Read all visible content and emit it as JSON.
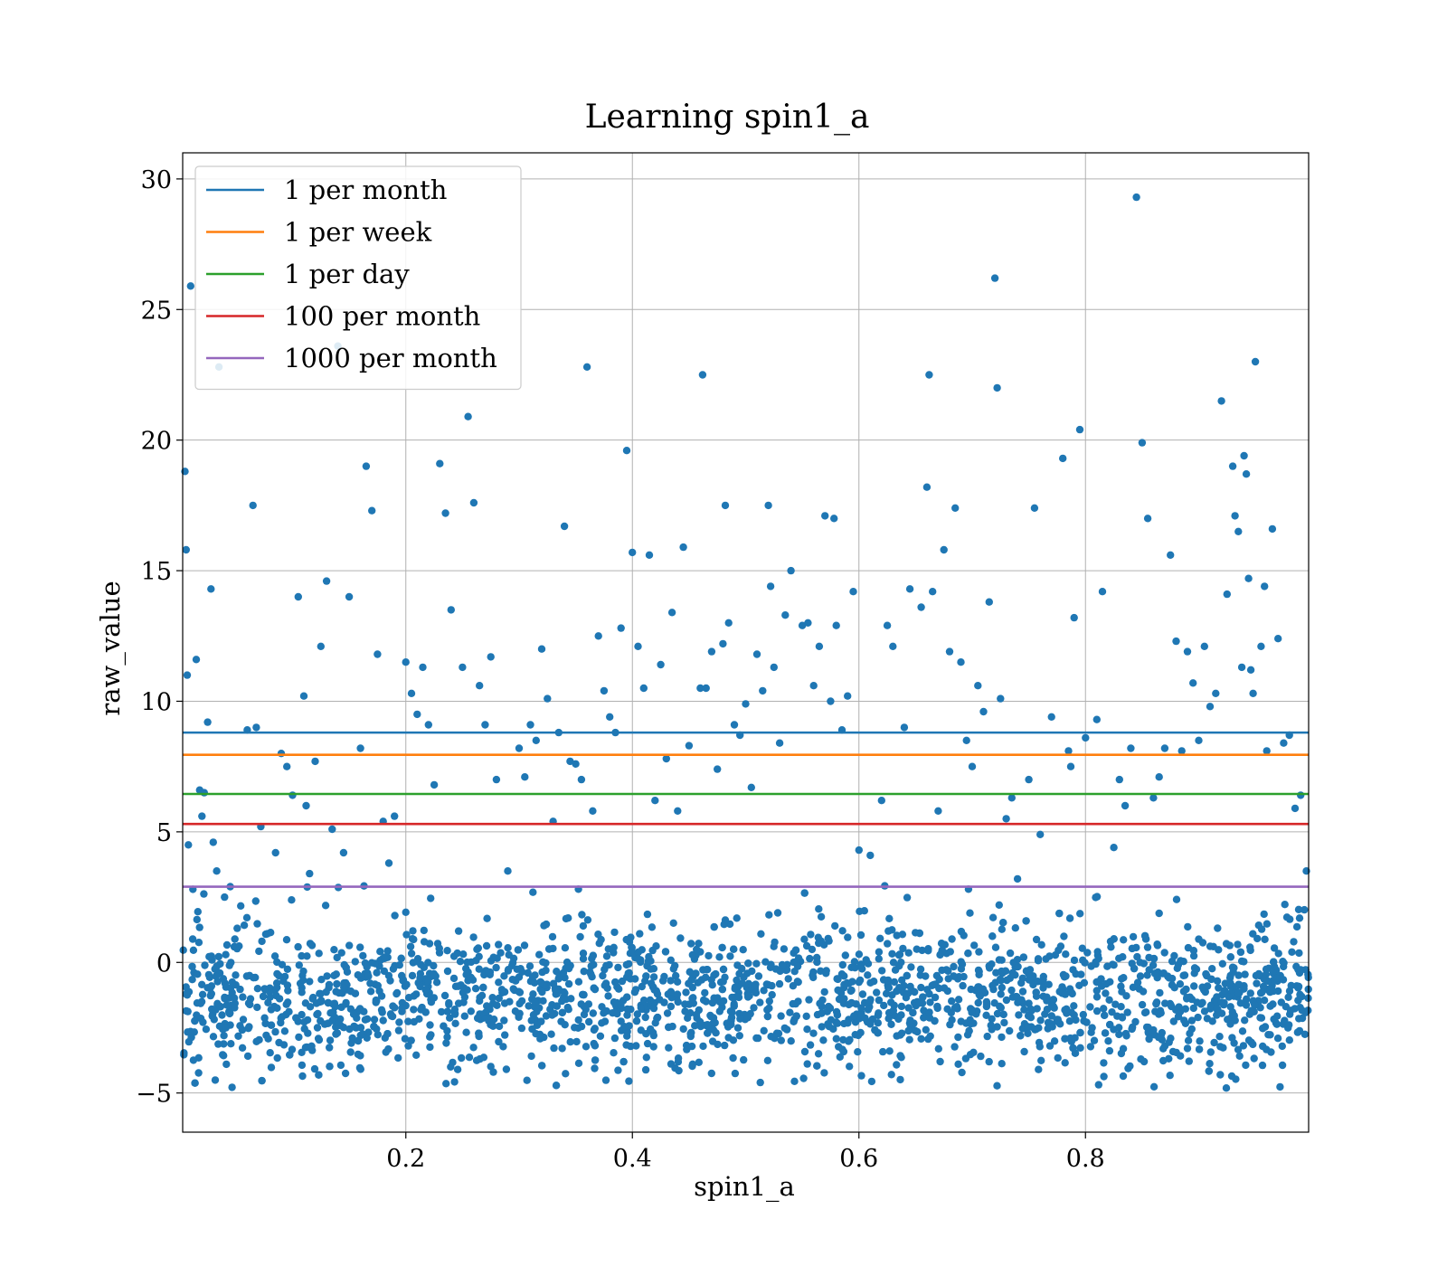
{
  "chart_data": {
    "type": "scatter",
    "title": "Learning spin1_a",
    "xlabel": "spin1_a",
    "ylabel": "raw_value",
    "xlim": [
      0.003,
      0.997
    ],
    "ylim": [
      -6.5,
      31.0
    ],
    "xticks": [
      0.2,
      0.4,
      0.6,
      0.8
    ],
    "xtick_labels": [
      "0.2",
      "0.4",
      "0.6",
      "0.8"
    ],
    "yticks": [
      -5,
      0,
      5,
      10,
      15,
      20,
      25,
      30
    ],
    "ytick_labels": [
      "−5",
      "0",
      "5",
      "10",
      "15",
      "20",
      "25",
      "30"
    ],
    "grid": true,
    "legend_position": "top-left",
    "scatter_color": "#1f77b4",
    "scatter_points": [
      [
        0.005,
        18.8
      ],
      [
        0.006,
        15.8
      ],
      [
        0.007,
        11.0
      ],
      [
        0.008,
        4.5
      ],
      [
        0.01,
        25.9
      ],
      [
        0.012,
        2.8
      ],
      [
        0.015,
        11.6
      ],
      [
        0.018,
        6.6
      ],
      [
        0.02,
        5.6
      ],
      [
        0.022,
        6.5
      ],
      [
        0.025,
        9.2
      ],
      [
        0.028,
        14.3
      ],
      [
        0.03,
        4.6
      ],
      [
        0.033,
        3.5
      ],
      [
        0.035,
        22.8
      ],
      [
        0.04,
        2.5
      ],
      [
        0.045,
        2.9
      ],
      [
        0.06,
        8.9
      ],
      [
        0.065,
        17.5
      ],
      [
        0.068,
        9.0
      ],
      [
        0.072,
        5.2
      ],
      [
        0.085,
        4.2
      ],
      [
        0.09,
        8.0
      ],
      [
        0.095,
        7.5
      ],
      [
        0.1,
        6.4
      ],
      [
        0.105,
        14.0
      ],
      [
        0.11,
        10.2
      ],
      [
        0.112,
        6.0
      ],
      [
        0.115,
        3.4
      ],
      [
        0.12,
        7.7
      ],
      [
        0.125,
        12.1
      ],
      [
        0.13,
        14.6
      ],
      [
        0.135,
        5.1
      ],
      [
        0.14,
        23.6
      ],
      [
        0.145,
        4.2
      ],
      [
        0.15,
        14.0
      ],
      [
        0.16,
        8.2
      ],
      [
        0.165,
        19.0
      ],
      [
        0.17,
        17.3
      ],
      [
        0.175,
        11.8
      ],
      [
        0.18,
        5.4
      ],
      [
        0.185,
        3.8
      ],
      [
        0.19,
        5.6
      ],
      [
        0.2,
        11.5
      ],
      [
        0.205,
        10.3
      ],
      [
        0.21,
        9.5
      ],
      [
        0.215,
        11.3
      ],
      [
        0.22,
        9.1
      ],
      [
        0.225,
        6.8
      ],
      [
        0.23,
        19.1
      ],
      [
        0.235,
        17.2
      ],
      [
        0.24,
        13.5
      ],
      [
        0.25,
        11.3
      ],
      [
        0.255,
        20.9
      ],
      [
        0.26,
        17.6
      ],
      [
        0.265,
        10.6
      ],
      [
        0.27,
        9.1
      ],
      [
        0.275,
        11.7
      ],
      [
        0.28,
        7.0
      ],
      [
        0.29,
        3.5
      ],
      [
        0.3,
        8.2
      ],
      [
        0.305,
        7.1
      ],
      [
        0.31,
        9.1
      ],
      [
        0.315,
        8.5
      ],
      [
        0.32,
        12.0
      ],
      [
        0.325,
        10.1
      ],
      [
        0.33,
        5.4
      ],
      [
        0.335,
        8.8
      ],
      [
        0.34,
        16.7
      ],
      [
        0.345,
        7.7
      ],
      [
        0.35,
        7.6
      ],
      [
        0.355,
        7.0
      ],
      [
        0.36,
        22.8
      ],
      [
        0.365,
        5.8
      ],
      [
        0.37,
        12.5
      ],
      [
        0.375,
        10.4
      ],
      [
        0.38,
        9.4
      ],
      [
        0.385,
        8.8
      ],
      [
        0.39,
        12.8
      ],
      [
        0.395,
        19.6
      ],
      [
        0.4,
        15.7
      ],
      [
        0.405,
        12.1
      ],
      [
        0.41,
        10.5
      ],
      [
        0.415,
        15.6
      ],
      [
        0.42,
        6.2
      ],
      [
        0.425,
        11.4
      ],
      [
        0.43,
        7.8
      ],
      [
        0.435,
        13.4
      ],
      [
        0.44,
        5.8
      ],
      [
        0.445,
        15.9
      ],
      [
        0.45,
        8.3
      ],
      [
        0.46,
        10.5
      ],
      [
        0.462,
        22.5
      ],
      [
        0.465,
        10.5
      ],
      [
        0.47,
        11.9
      ],
      [
        0.475,
        7.4
      ],
      [
        0.48,
        12.2
      ],
      [
        0.482,
        17.5
      ],
      [
        0.485,
        13.0
      ],
      [
        0.49,
        9.1
      ],
      [
        0.495,
        8.7
      ],
      [
        0.5,
        9.9
      ],
      [
        0.505,
        6.7
      ],
      [
        0.51,
        11.8
      ],
      [
        0.515,
        10.4
      ],
      [
        0.52,
        17.5
      ],
      [
        0.522,
        14.4
      ],
      [
        0.525,
        11.3
      ],
      [
        0.53,
        8.4
      ],
      [
        0.535,
        13.3
      ],
      [
        0.54,
        15.0
      ],
      [
        0.55,
        12.9
      ],
      [
        0.555,
        13.0
      ],
      [
        0.56,
        10.6
      ],
      [
        0.565,
        12.1
      ],
      [
        0.57,
        17.1
      ],
      [
        0.575,
        10.0
      ],
      [
        0.578,
        17.0
      ],
      [
        0.58,
        12.9
      ],
      [
        0.585,
        8.9
      ],
      [
        0.59,
        10.2
      ],
      [
        0.595,
        14.2
      ],
      [
        0.6,
        4.3
      ],
      [
        0.61,
        4.1
      ],
      [
        0.62,
        6.2
      ],
      [
        0.625,
        12.9
      ],
      [
        0.63,
        12.1
      ],
      [
        0.64,
        9.0
      ],
      [
        0.645,
        14.3
      ],
      [
        0.655,
        13.6
      ],
      [
        0.66,
        18.2
      ],
      [
        0.662,
        22.5
      ],
      [
        0.665,
        14.2
      ],
      [
        0.67,
        5.8
      ],
      [
        0.675,
        15.8
      ],
      [
        0.68,
        11.9
      ],
      [
        0.685,
        17.4
      ],
      [
        0.69,
        11.5
      ],
      [
        0.695,
        8.5
      ],
      [
        0.7,
        7.5
      ],
      [
        0.705,
        10.6
      ],
      [
        0.71,
        9.6
      ],
      [
        0.715,
        13.8
      ],
      [
        0.72,
        26.2
      ],
      [
        0.722,
        22.0
      ],
      [
        0.725,
        10.1
      ],
      [
        0.73,
        5.5
      ],
      [
        0.735,
        6.3
      ],
      [
        0.74,
        3.2
      ],
      [
        0.75,
        7.0
      ],
      [
        0.755,
        17.4
      ],
      [
        0.76,
        4.9
      ],
      [
        0.77,
        9.4
      ],
      [
        0.78,
        19.3
      ],
      [
        0.785,
        8.1
      ],
      [
        0.787,
        7.5
      ],
      [
        0.79,
        13.2
      ],
      [
        0.795,
        20.4
      ],
      [
        0.8,
        8.6
      ],
      [
        0.81,
        9.3
      ],
      [
        0.815,
        14.2
      ],
      [
        0.825,
        4.4
      ],
      [
        0.83,
        7.0
      ],
      [
        0.835,
        6.0
      ],
      [
        0.84,
        8.2
      ],
      [
        0.845,
        29.3
      ],
      [
        0.85,
        19.9
      ],
      [
        0.855,
        17.0
      ],
      [
        0.86,
        6.3
      ],
      [
        0.865,
        7.1
      ],
      [
        0.87,
        8.2
      ],
      [
        0.875,
        15.6
      ],
      [
        0.88,
        12.3
      ],
      [
        0.885,
        8.1
      ],
      [
        0.89,
        11.9
      ],
      [
        0.895,
        10.7
      ],
      [
        0.9,
        8.5
      ],
      [
        0.905,
        12.1
      ],
      [
        0.91,
        9.8
      ],
      [
        0.915,
        10.3
      ],
      [
        0.92,
        21.5
      ],
      [
        0.925,
        14.1
      ],
      [
        0.93,
        19.0
      ],
      [
        0.932,
        17.1
      ],
      [
        0.935,
        16.5
      ],
      [
        0.938,
        11.3
      ],
      [
        0.94,
        19.4
      ],
      [
        0.942,
        18.7
      ],
      [
        0.944,
        14.7
      ],
      [
        0.946,
        11.2
      ],
      [
        0.948,
        10.3
      ],
      [
        0.95,
        23.0
      ],
      [
        0.955,
        12.1
      ],
      [
        0.958,
        14.4
      ],
      [
        0.96,
        8.1
      ],
      [
        0.965,
        16.6
      ],
      [
        0.97,
        12.4
      ],
      [
        0.975,
        8.4
      ],
      [
        0.98,
        8.7
      ],
      [
        0.985,
        5.9
      ],
      [
        0.99,
        6.4
      ],
      [
        0.995,
        3.5
      ]
    ],
    "dense_band": {
      "description_range": [
        -4.9,
        3.0
      ],
      "count": 2200,
      "center": -1.3
    },
    "series": [
      {
        "name": "1 per month",
        "type": "hline",
        "y": 8.8,
        "color": "#1f77b4"
      },
      {
        "name": "1 per week",
        "type": "hline",
        "y": 7.95,
        "color": "#ff7f0e"
      },
      {
        "name": "1 per day",
        "type": "hline",
        "y": 6.45,
        "color": "#2ca02c"
      },
      {
        "name": "100 per month",
        "type": "hline",
        "y": 5.3,
        "color": "#d62728"
      },
      {
        "name": "1000 per month",
        "type": "hline",
        "y": 2.9,
        "color": "#9467bd"
      }
    ]
  }
}
